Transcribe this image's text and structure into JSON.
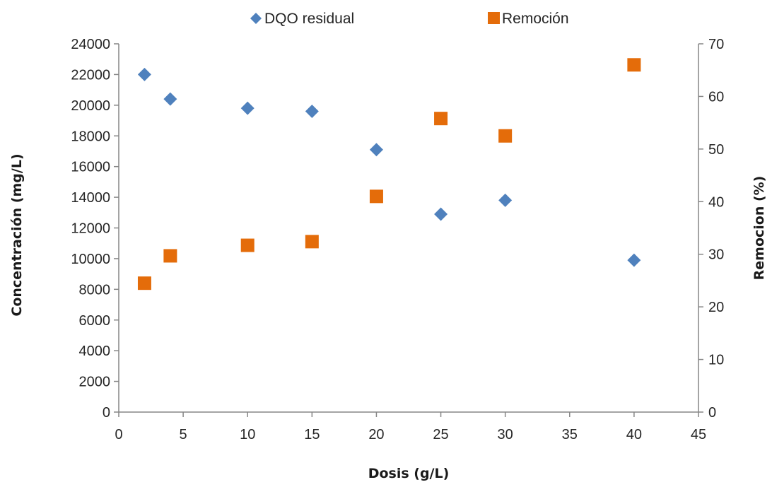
{
  "chart_data": {
    "type": "scatter",
    "xlabel": "Dosis (g/L)",
    "ylabel": "Concentración (mg/L)",
    "y2label": "Remocion (%)",
    "xlim": [
      0,
      45
    ],
    "ylim": [
      0,
      24000
    ],
    "y2lim": [
      0,
      70
    ],
    "x_ticks": [
      "0",
      "5",
      "10",
      "15",
      "20",
      "25",
      "30",
      "35",
      "40",
      "45"
    ],
    "y_ticks": [
      "0",
      "2000",
      "4000",
      "6000",
      "8000",
      "10000",
      "12000",
      "14000",
      "16000",
      "18000",
      "20000",
      "22000",
      "24000"
    ],
    "y2_ticks": [
      "0",
      "10",
      "20",
      "30",
      "40",
      "50",
      "60",
      "70"
    ],
    "grid": false,
    "legend_position": "top-center",
    "series": [
      {
        "name": "DQO residual",
        "axis": "left",
        "marker": "diamond",
        "color": "#4F81BD",
        "x": [
          2,
          4,
          10,
          15,
          20,
          25,
          30,
          40
        ],
        "y": [
          22000,
          20400,
          19800,
          19600,
          17100,
          12900,
          13800,
          9900
        ]
      },
      {
        "name": "Remoción",
        "axis": "right",
        "marker": "square",
        "color": "#E46C0A",
        "x": [
          2,
          4,
          10,
          15,
          20,
          25,
          30,
          40
        ],
        "y": [
          24.5,
          29.7,
          31.7,
          32.4,
          41.0,
          55.8,
          52.5,
          66.0
        ]
      }
    ]
  }
}
